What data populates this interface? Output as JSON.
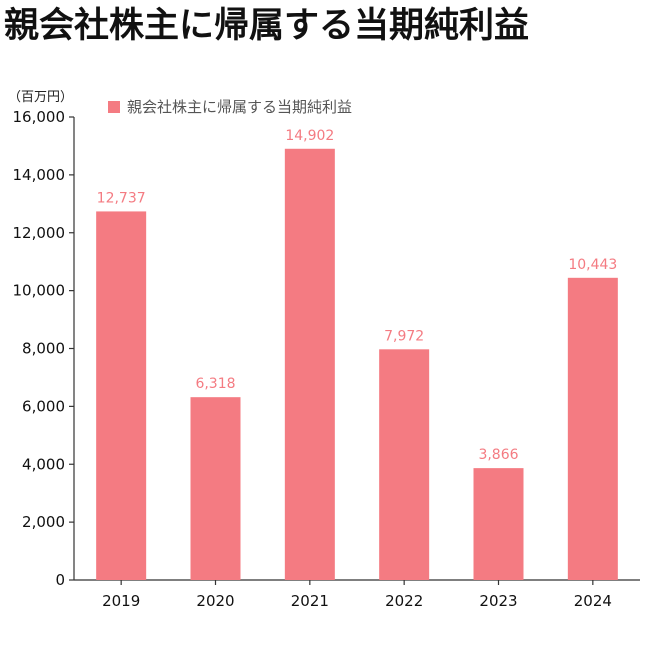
{
  "title": "親会社株主に帰属する当期純利益",
  "unit_label": "（百万円）",
  "colors": {
    "bar": "#f47b82",
    "label": "#f47b82",
    "axis": "#333333"
  },
  "chart_data": {
    "type": "bar",
    "title": "親会社株主に帰属する当期純利益",
    "xlabel": "",
    "ylabel": "（百万円）",
    "categories": [
      "2019",
      "2020",
      "2021",
      "2022",
      "2023",
      "2024"
    ],
    "series": [
      {
        "name": "親会社株主に帰属する当期純利益",
        "values": [
          12737,
          6318,
          14902,
          7972,
          3866,
          10443
        ],
        "labels": [
          "12,737",
          "6,318",
          "14,902",
          "7,972",
          "3,866",
          "10,443"
        ]
      }
    ],
    "ylim": [
      0,
      16000
    ],
    "yticks": [
      0,
      2000,
      4000,
      6000,
      8000,
      10000,
      12000,
      14000,
      16000
    ],
    "ytick_labels": [
      "0",
      "2,000",
      "4,000",
      "6,000",
      "8,000",
      "10,000",
      "12,000",
      "14,000",
      "16,000"
    ],
    "legend": "top-left",
    "grid": false
  }
}
